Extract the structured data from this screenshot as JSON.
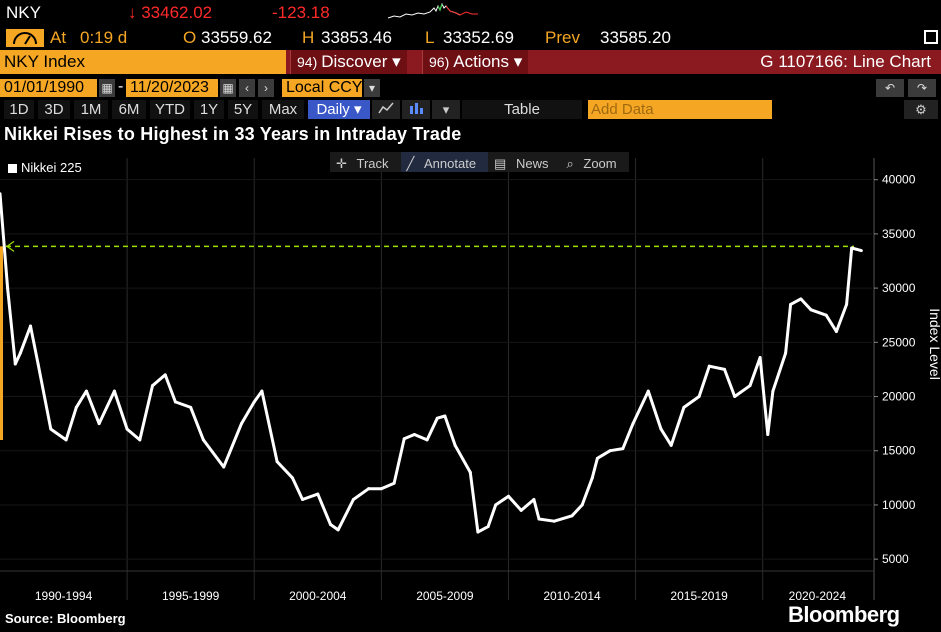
{
  "header": {
    "ticker": "NKY",
    "last_price": "↓ 33462.02",
    "net_change": "-123.18"
  },
  "ohlc": {
    "at_label": "At",
    "at_time": "0:19 d",
    "open_label": "O",
    "open": "33559.62",
    "high_label": "H",
    "high": "33853.46",
    "low_label": "L",
    "low": "33352.69",
    "prev_label": "Prev",
    "prev": "33585.20"
  },
  "security_bar": {
    "security": "NKY Index",
    "discover_num": "94)",
    "discover_label": "Discover ▾",
    "actions_num": "96)",
    "actions_label": "Actions ▾",
    "function_title": "G 1107166: Line Chart"
  },
  "date_range": {
    "start": "01/01/1990",
    "end": "11/20/2023",
    "currency": "Local CCY"
  },
  "periods": [
    "1D",
    "3D",
    "1M",
    "6M",
    "YTD",
    "1Y",
    "5Y",
    "Max"
  ],
  "frequency": "Daily ▾",
  "table_label": "Table",
  "add_data_placeholder": "Add Data",
  "chart_tools": {
    "track": "Track",
    "annotate": "Annotate",
    "news": "News",
    "zoom": "Zoom"
  },
  "chart_data": {
    "type": "line",
    "title": "Nikkei Rises to Highest in 33 Years in Intraday Trade",
    "ylabel": "Index Level",
    "xlabel": "",
    "ylim": [
      4000,
      42000
    ],
    "yticks": [
      5000,
      10000,
      15000,
      20000,
      25000,
      30000,
      35000,
      40000
    ],
    "xticks": [
      "1990-1994",
      "1995-1999",
      "2000-2004",
      "2005-2009",
      "2010-2014",
      "2015-2019",
      "2020-2024"
    ],
    "reference_line": 33853.46,
    "legend_position": "top-left",
    "grid": true,
    "series": [
      {
        "name": "Nikkei 225",
        "color": "#ffffff",
        "x": [
          1990.0,
          1990.3,
          1990.6,
          1990.8,
          1991.2,
          1991.5,
          1992.0,
          1992.6,
          1993.0,
          1993.4,
          1993.9,
          1994.5,
          1995.0,
          1995.5,
          1996.0,
          1996.5,
          1996.9,
          1997.5,
          1998.0,
          1998.8,
          1999.5,
          2000.0,
          2000.3,
          2000.9,
          2001.5,
          2001.9,
          2002.5,
          2003.0,
          2003.3,
          2003.9,
          2004.5,
          2005.0,
          2005.5,
          2005.9,
          2006.3,
          2006.8,
          2007.2,
          2007.5,
          2007.9,
          2008.5,
          2008.8,
          2009.2,
          2009.5,
          2010.0,
          2010.5,
          2011.0,
          2011.2,
          2011.8,
          2012.5,
          2012.9,
          2013.3,
          2013.5,
          2014.0,
          2014.5,
          2014.9,
          2015.5,
          2016.0,
          2016.4,
          2016.9,
          2017.5,
          2017.9,
          2018.5,
          2018.9,
          2019.5,
          2019.9,
          2020.2,
          2020.4,
          2020.9,
          2021.1,
          2021.5,
          2021.9,
          2022.5,
          2022.9,
          2023.3,
          2023.5,
          2023.88
        ],
        "values": [
          38700,
          30000,
          23000,
          24000,
          26500,
          23000,
          17000,
          16000,
          19000,
          20500,
          17500,
          20500,
          17000,
          16000,
          21000,
          22000,
          19500,
          19000,
          16000,
          13500,
          17500,
          19500,
          20500,
          14000,
          12500,
          10500,
          11000,
          8200,
          7700,
          10500,
          11500,
          11500,
          12000,
          16100,
          16500,
          16000,
          18000,
          18200,
          15500,
          13000,
          7500,
          8000,
          10000,
          10800,
          9500,
          10500,
          8700,
          8500,
          9000,
          10000,
          12500,
          14300,
          15000,
          15200,
          17500,
          20500,
          17000,
          15500,
          19000,
          20000,
          22800,
          22500,
          20000,
          21000,
          23600,
          16500,
          20500,
          24000,
          28500,
          29000,
          28000,
          27500,
          26000,
          28500,
          33700,
          33462
        ]
      }
    ]
  },
  "footer": {
    "source": "Source: Bloomberg",
    "brand": "Bloomberg"
  }
}
